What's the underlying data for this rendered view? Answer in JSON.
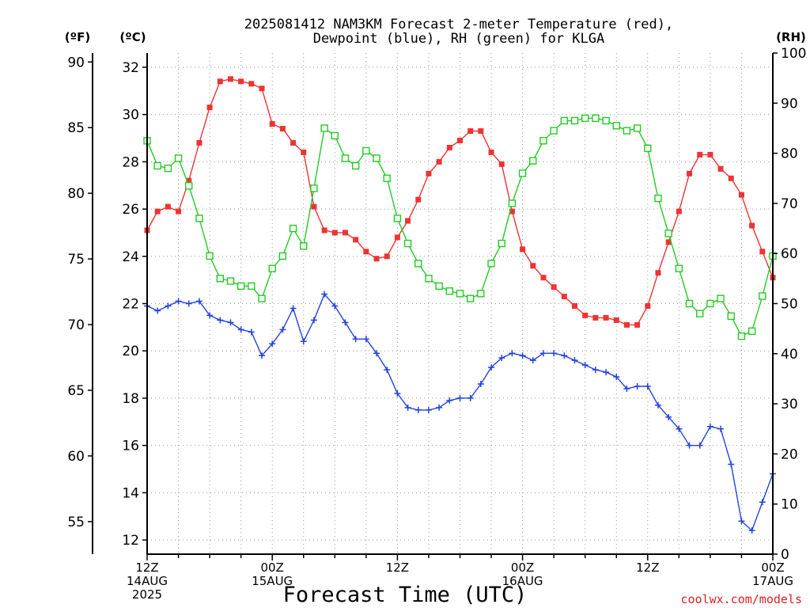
{
  "title_line1": "2025081412 NAM3KM Forecast 2-meter Temperature (red),",
  "title_line2": "Dewpoint (blue), RH (green) for KLGA",
  "units": {
    "fahrenheit": "(ºF)",
    "celsius": "(ºC)",
    "rh": "(RH)"
  },
  "xlabel": "Forecast Time (UTC)",
  "watermark": "coolwx.com/models",
  "chart_data": {
    "type": "line",
    "x_ticks": [
      {
        "hour": 0,
        "lines": [
          "12Z",
          "14AUG",
          "2025"
        ]
      },
      {
        "hour": 12,
        "lines": [
          "00Z",
          "15AUG"
        ]
      },
      {
        "hour": 24,
        "lines": [
          "12Z"
        ]
      },
      {
        "hour": 36,
        "lines": [
          "00Z",
          "16AUG"
        ]
      },
      {
        "hour": 48,
        "lines": [
          "12Z"
        ]
      },
      {
        "hour": 60,
        "lines": [
          "00Z",
          "17AUG"
        ]
      }
    ],
    "xlim": [
      0,
      60
    ],
    "celsius_axis": {
      "ylim": [
        11.4,
        32.6
      ],
      "ticks": [
        12,
        14,
        16,
        18,
        20,
        22,
        24,
        26,
        28,
        30,
        32
      ]
    },
    "fahrenheit_axis": {
      "ticks": [
        55,
        60,
        65,
        70,
        75,
        80,
        85,
        90
      ]
    },
    "rh_axis": {
      "ylim": [
        0,
        100
      ],
      "ticks": [
        0,
        10,
        20,
        30,
        40,
        50,
        60,
        70,
        80,
        90,
        100
      ]
    },
    "grid": true,
    "series": [
      {
        "key": "temperature",
        "axis": "celsius",
        "color": "#ee3333",
        "marker": "filled-square",
        "x": [
          0,
          1,
          2,
          3,
          4,
          5,
          6,
          7,
          8,
          9,
          10,
          11,
          12,
          13,
          14,
          15,
          16,
          17,
          18,
          19,
          20,
          21,
          22,
          23,
          24,
          25,
          26,
          27,
          28,
          29,
          30,
          31,
          32,
          33,
          34,
          35,
          36,
          37,
          38,
          39,
          40,
          41,
          42,
          43,
          44,
          45,
          46,
          47,
          48,
          49,
          50,
          51,
          52,
          53,
          54,
          55,
          56,
          57,
          58,
          59,
          60
        ],
        "values": [
          25.1,
          25.9,
          26.1,
          25.9,
          27.2,
          28.8,
          30.3,
          31.4,
          31.5,
          31.4,
          31.3,
          31.1,
          29.6,
          29.4,
          28.8,
          28.4,
          26.1,
          25.1,
          25.0,
          25.0,
          24.7,
          24.2,
          23.9,
          24.0,
          24.8,
          25.5,
          26.4,
          27.5,
          28.0,
          28.6,
          28.9,
          29.3,
          29.3,
          28.4,
          27.9,
          25.9,
          24.3,
          23.6,
          23.1,
          22.7,
          22.3,
          21.9,
          21.5,
          21.4,
          21.4,
          21.3,
          21.1,
          21.1,
          21.9,
          23.3,
          24.6,
          25.9,
          27.5,
          28.3,
          28.3,
          27.7,
          27.3,
          26.6,
          25.3,
          24.2,
          23.1
        ]
      },
      {
        "key": "dewpoint",
        "axis": "celsius",
        "color": "#2244dd",
        "marker": "plus",
        "x": [
          0,
          1,
          2,
          3,
          4,
          5,
          6,
          7,
          8,
          9,
          10,
          11,
          12,
          13,
          14,
          15,
          16,
          17,
          18,
          19,
          20,
          21,
          22,
          23,
          24,
          25,
          26,
          27,
          28,
          29,
          30,
          31,
          32,
          33,
          34,
          35,
          36,
          37,
          38,
          39,
          40,
          41,
          42,
          43,
          44,
          45,
          46,
          47,
          48,
          49,
          50,
          51,
          52,
          53,
          54,
          55,
          56,
          57,
          58,
          59,
          60
        ],
        "values": [
          21.9,
          21.7,
          21.9,
          22.1,
          22.0,
          22.1,
          21.5,
          21.3,
          21.2,
          20.9,
          20.8,
          19.8,
          20.3,
          20.9,
          21.8,
          20.4,
          21.3,
          22.4,
          21.9,
          21.2,
          20.5,
          20.5,
          19.9,
          19.2,
          18.2,
          17.6,
          17.5,
          17.5,
          17.6,
          17.9,
          18.0,
          18.0,
          18.6,
          19.3,
          19.7,
          19.9,
          19.8,
          19.6,
          19.9,
          19.9,
          19.8,
          19.6,
          19.4,
          19.2,
          19.1,
          18.9,
          18.4,
          18.5,
          18.5,
          17.7,
          17.2,
          16.7,
          16.0,
          16.0,
          16.8,
          16.7,
          15.2,
          12.8,
          12.4,
          13.6,
          14.8
        ]
      },
      {
        "key": "rh",
        "axis": "rh",
        "color": "#22cc22",
        "marker": "open-square",
        "x": [
          0,
          1,
          2,
          3,
          4,
          5,
          6,
          7,
          8,
          9,
          10,
          11,
          12,
          13,
          14,
          15,
          16,
          17,
          18,
          19,
          20,
          21,
          22,
          23,
          24,
          25,
          26,
          27,
          28,
          29,
          30,
          31,
          32,
          33,
          34,
          35,
          36,
          37,
          38,
          39,
          40,
          41,
          42,
          43,
          44,
          45,
          46,
          47,
          48,
          49,
          50,
          51,
          52,
          53,
          54,
          55,
          56,
          57,
          58,
          59,
          60
        ],
        "values": [
          82.5,
          77.5,
          77,
          79,
          73.5,
          67,
          59.5,
          55,
          54.5,
          53.5,
          53.5,
          51,
          57,
          59.5,
          65,
          61.5,
          73,
          85,
          83.5,
          79,
          77.5,
          80.5,
          79,
          75,
          67,
          62,
          58,
          55,
          53.5,
          52.5,
          52,
          51,
          52,
          58,
          62,
          70,
          76,
          78.5,
          82.5,
          84.5,
          86.5,
          86.5,
          87,
          87,
          86.5,
          85.5,
          84.5,
          85,
          81,
          71,
          64,
          57,
          50,
          48,
          50,
          51,
          47.5,
          43.5,
          44.5,
          51.5,
          59.5
        ]
      }
    ]
  }
}
